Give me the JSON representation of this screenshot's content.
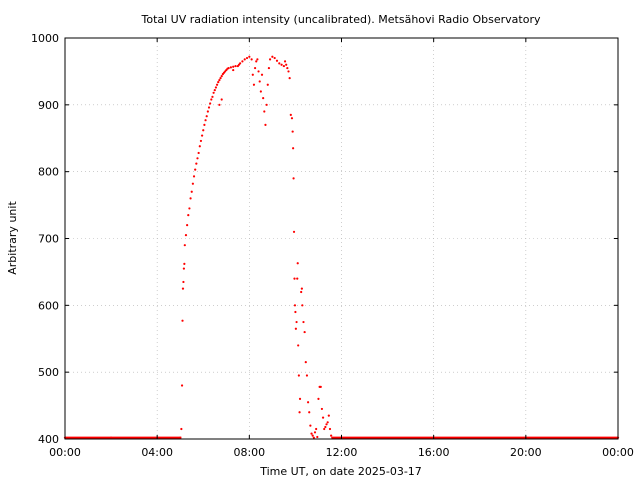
{
  "chart_data": {
    "type": "scatter",
    "title": "Total UV radiation intensity (uncalibrated). Metsähovi Radio Observatory",
    "xlabel": "Time UT, on date 2025-03-17",
    "ylabel": "Arbitrary unit",
    "xlim": [
      0,
      24
    ],
    "ylim": [
      400,
      1000
    ],
    "xticks": [
      0,
      4,
      8,
      12,
      16,
      20,
      24
    ],
    "xtick_labels": [
      "00:00",
      "04:00",
      "08:00",
      "12:00",
      "16:00",
      "20:00",
      "00:00"
    ],
    "yticks": [
      400,
      500,
      600,
      700,
      800,
      900,
      1000
    ],
    "ytick_labels": [
      "400",
      "500",
      "600",
      "700",
      "800",
      "900",
      "1000"
    ],
    "grid": true,
    "series": [
      {
        "color": "#ff0000",
        "marker": "dot",
        "points": [
          [
            5.05,
            415
          ],
          [
            5.08,
            480
          ],
          [
            5.1,
            577
          ],
          [
            5.12,
            625
          ],
          [
            5.14,
            635
          ],
          [
            5.16,
            655
          ],
          [
            5.18,
            662
          ],
          [
            5.2,
            690
          ],
          [
            5.25,
            705
          ],
          [
            5.3,
            720
          ],
          [
            5.35,
            735
          ],
          [
            5.4,
            745
          ],
          [
            5.45,
            760
          ],
          [
            5.5,
            770
          ],
          [
            5.55,
            782
          ],
          [
            5.6,
            793
          ],
          [
            5.65,
            803
          ],
          [
            5.7,
            812
          ],
          [
            5.75,
            820
          ],
          [
            5.8,
            828
          ],
          [
            5.85,
            838
          ],
          [
            5.9,
            846
          ],
          [
            5.95,
            854
          ],
          [
            6.0,
            862
          ],
          [
            6.05,
            870
          ],
          [
            6.1,
            877
          ],
          [
            6.15,
            883
          ],
          [
            6.2,
            890
          ],
          [
            6.25,
            896
          ],
          [
            6.3,
            902
          ],
          [
            6.35,
            908
          ],
          [
            6.4,
            912
          ],
          [
            6.45,
            918
          ],
          [
            6.5,
            922
          ],
          [
            6.55,
            926
          ],
          [
            6.6,
            930
          ],
          [
            6.65,
            934
          ],
          [
            6.7,
            937
          ],
          [
            6.75,
            940
          ],
          [
            6.8,
            943
          ],
          [
            6.85,
            946
          ],
          [
            6.9,
            948
          ],
          [
            6.95,
            950
          ],
          [
            7.0,
            952
          ],
          [
            7.05,
            954
          ],
          [
            7.1,
            955
          ],
          [
            7.2,
            956
          ],
          [
            7.3,
            957
          ],
          [
            7.4,
            958
          ],
          [
            7.5,
            958
          ],
          [
            7.6,
            962
          ],
          [
            7.7,
            965
          ],
          [
            7.8,
            968
          ],
          [
            7.9,
            970
          ],
          [
            8.0,
            972
          ],
          [
            6.7,
            900
          ],
          [
            6.8,
            908
          ],
          [
            7.3,
            952
          ],
          [
            7.55,
            960
          ],
          [
            8.1,
            968
          ],
          [
            8.15,
            945
          ],
          [
            8.2,
            930
          ],
          [
            8.25,
            955
          ],
          [
            8.3,
            965
          ],
          [
            8.35,
            968
          ],
          [
            8.4,
            950
          ],
          [
            8.45,
            935
          ],
          [
            8.5,
            920
          ],
          [
            8.55,
            945
          ],
          [
            8.6,
            910
          ],
          [
            8.65,
            890
          ],
          [
            8.7,
            870
          ],
          [
            8.75,
            900
          ],
          [
            8.8,
            930
          ],
          [
            8.85,
            955
          ],
          [
            8.9,
            968
          ],
          [
            9.0,
            972
          ],
          [
            9.1,
            970
          ],
          [
            9.2,
            966
          ],
          [
            9.3,
            962
          ],
          [
            9.4,
            960
          ],
          [
            9.5,
            958
          ],
          [
            9.55,
            965
          ],
          [
            9.6,
            960
          ],
          [
            9.65,
            955
          ],
          [
            9.7,
            950
          ],
          [
            9.75,
            940
          ],
          [
            9.8,
            885
          ],
          [
            9.85,
            880
          ],
          [
            9.88,
            860
          ],
          [
            9.9,
            835
          ],
          [
            9.92,
            790
          ],
          [
            9.94,
            710
          ],
          [
            9.96,
            640
          ],
          [
            9.98,
            600
          ],
          [
            10.0,
            590
          ],
          [
            10.02,
            565
          ],
          [
            10.05,
            575
          ],
          [
            10.08,
            640
          ],
          [
            10.1,
            663
          ],
          [
            10.12,
            540
          ],
          [
            10.15,
            495
          ],
          [
            10.18,
            440
          ],
          [
            10.2,
            460
          ],
          [
            10.25,
            620
          ],
          [
            10.28,
            625
          ],
          [
            10.3,
            600
          ],
          [
            10.35,
            575
          ],
          [
            10.4,
            560
          ],
          [
            10.45,
            515
          ],
          [
            10.5,
            495
          ],
          [
            10.55,
            455
          ],
          [
            10.6,
            440
          ],
          [
            10.65,
            420
          ],
          [
            10.7,
            408
          ],
          [
            10.75,
            405
          ],
          [
            10.8,
            402
          ],
          [
            10.85,
            410
          ],
          [
            10.9,
            415
          ],
          [
            10.95,
            403
          ],
          [
            11.0,
            460
          ],
          [
            11.05,
            478
          ],
          [
            11.1,
            478
          ],
          [
            11.15,
            445
          ],
          [
            11.2,
            432
          ],
          [
            11.25,
            415
          ],
          [
            11.3,
            418
          ],
          [
            11.35,
            422
          ],
          [
            11.4,
            425
          ],
          [
            11.45,
            435
          ],
          [
            11.5,
            415
          ],
          [
            11.55,
            405
          ],
          [
            11.6,
            402
          ],
          [
            0.0,
            402
          ],
          [
            2.0,
            402
          ],
          [
            4.0,
            402
          ],
          [
            5.0,
            402
          ],
          [
            12.0,
            402
          ],
          [
            16.0,
            402
          ],
          [
            20.0,
            402
          ],
          [
            24.0,
            402
          ]
        ]
      }
    ]
  }
}
